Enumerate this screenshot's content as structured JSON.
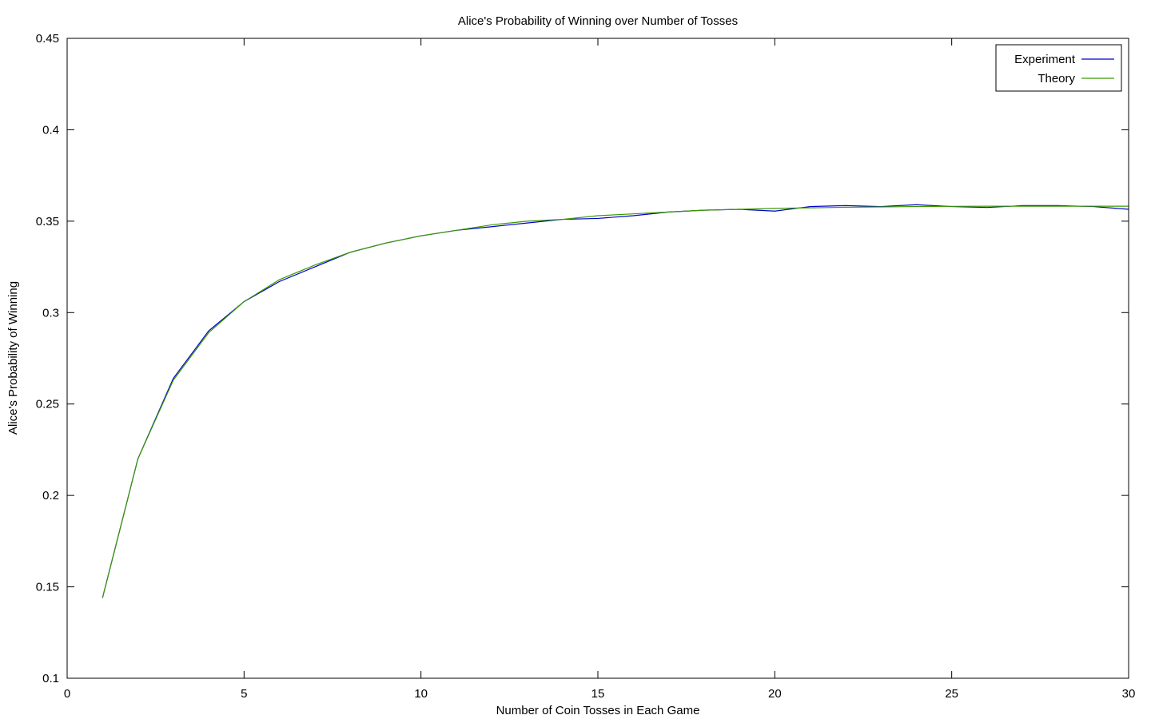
{
  "chart_data": {
    "type": "line",
    "title": "Alice's Probability of Winning over Number of Tosses",
    "xlabel": "Number of Coin Tosses in Each Game",
    "ylabel": "Alice's Probability of Winning",
    "xlim": [
      0,
      30
    ],
    "ylim": [
      0.1,
      0.45
    ],
    "xticks": [
      "0",
      "5",
      "10",
      "15",
      "20",
      "25",
      "30"
    ],
    "yticks": [
      "0.1",
      "0.15",
      "0.2",
      "0.25",
      "0.3",
      "0.35",
      "0.4",
      "0.45"
    ],
    "grid": false,
    "legend_position": "top-right",
    "x": [
      1,
      2,
      3,
      4,
      5,
      6,
      7,
      8,
      9,
      10,
      11,
      12,
      13,
      14,
      15,
      16,
      17,
      18,
      19,
      20,
      21,
      22,
      23,
      24,
      25,
      26,
      27,
      28,
      29,
      30
    ],
    "series": [
      {
        "name": "Experiment",
        "color": "#0000cc",
        "values": [
          0.144,
          0.22,
          0.264,
          0.29,
          0.306,
          0.317,
          0.325,
          0.333,
          0.338,
          0.342,
          0.345,
          0.347,
          0.349,
          0.351,
          0.3515,
          0.353,
          0.355,
          0.356,
          0.3565,
          0.3555,
          0.358,
          0.3585,
          0.358,
          0.359,
          0.358,
          0.3575,
          0.3585,
          0.3585,
          0.358,
          0.3565
        ]
      },
      {
        "name": "Theory",
        "color": "#3c9a00",
        "values": [
          0.144,
          0.22,
          0.263,
          0.289,
          0.306,
          0.318,
          0.326,
          0.333,
          0.338,
          0.342,
          0.345,
          0.348,
          0.35,
          0.351,
          0.353,
          0.354,
          0.355,
          0.356,
          0.3565,
          0.357,
          0.3573,
          0.3576,
          0.3578,
          0.358,
          0.3581,
          0.3582,
          0.3582,
          0.3582,
          0.3582,
          0.3582
        ]
      }
    ]
  }
}
